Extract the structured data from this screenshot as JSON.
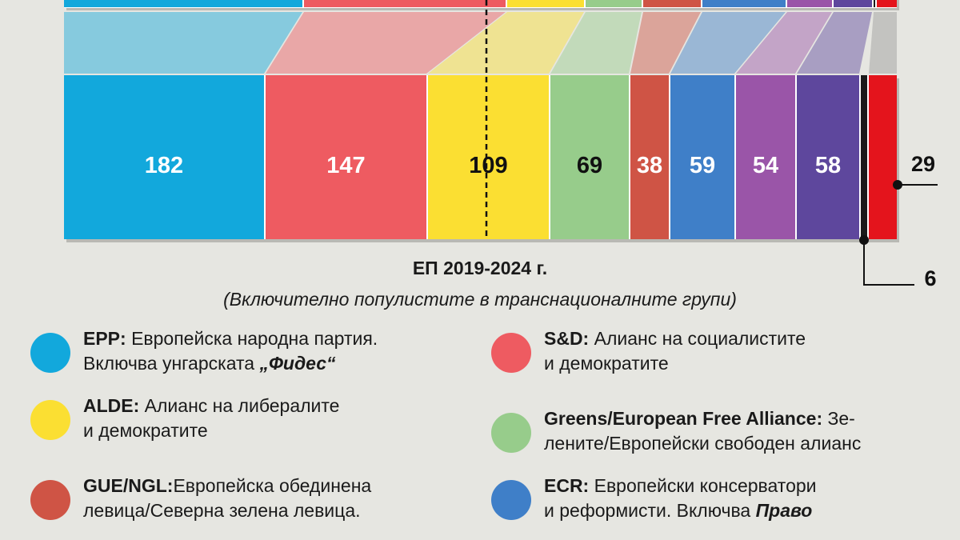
{
  "chart_data": {
    "type": "bar",
    "layout": "stacked-horizontal",
    "title": "ЕП 2019-2024 г.",
    "subtitle": "(Включително популистите в транснационалните групи)",
    "categories": [
      "EPP",
      "S&D",
      "ALDE",
      "Greens/EFA",
      "GUE/NGL",
      "ECR",
      "",
      "",
      "",
      ""
    ],
    "values": [
      182,
      147,
      109,
      69,
      38,
      59,
      54,
      58,
      6,
      29
    ],
    "labels": [
      "182",
      "147",
      "109",
      "69",
      "38",
      "59",
      "54",
      "58",
      "6",
      "29"
    ],
    "colors": [
      "#12a8dc",
      "#ee5b61",
      "#fbdf32",
      "#97cc8b",
      "#cf5445",
      "#3f7fc8",
      "#9a55a8",
      "#5e479d",
      "#1a1a1a",
      "#e4141c"
    ],
    "label_colors": [
      "#ffffff",
      "#ffffff",
      "#111111",
      "#111111",
      "#ffffff",
      "#ffffff",
      "#ffffff",
      "#ffffff",
      "#111111",
      "#111111"
    ],
    "majority_line": "dashed"
  },
  "legend": [
    {
      "code": "EPP:",
      "text1": " Европейска народна партия.",
      "text2": "Включва унгарската ",
      "highlight": "„Фидес“",
      "color": "#12a8dc"
    },
    {
      "code": "S&D:",
      "text1": " Алианс на социалистите",
      "text2": "и демократите",
      "highlight": "",
      "color": "#ee5b61"
    },
    {
      "code": "ALDE:",
      "text1": " Алианс на либералите",
      "text2": "и демократите",
      "highlight": "",
      "color": "#fbdf32"
    },
    {
      "code": "Greens/European Free Alliance:",
      "text1": " Зе-",
      "text2": "лените/Европейски свободен алианс",
      "highlight": "",
      "color": "#97cc8b"
    },
    {
      "code": "GUE/NGL:",
      "text1": "Европейска обединена",
      "text2": "левица/Северна зелена левица.",
      "highlight": "",
      "color": "#cf5445"
    },
    {
      "code": "ECR:",
      "text1": " Европейски консерватори",
      "text2": "и реформисти. Включва ",
      "highlight": "Право",
      "color": "#3f7fc8"
    }
  ]
}
